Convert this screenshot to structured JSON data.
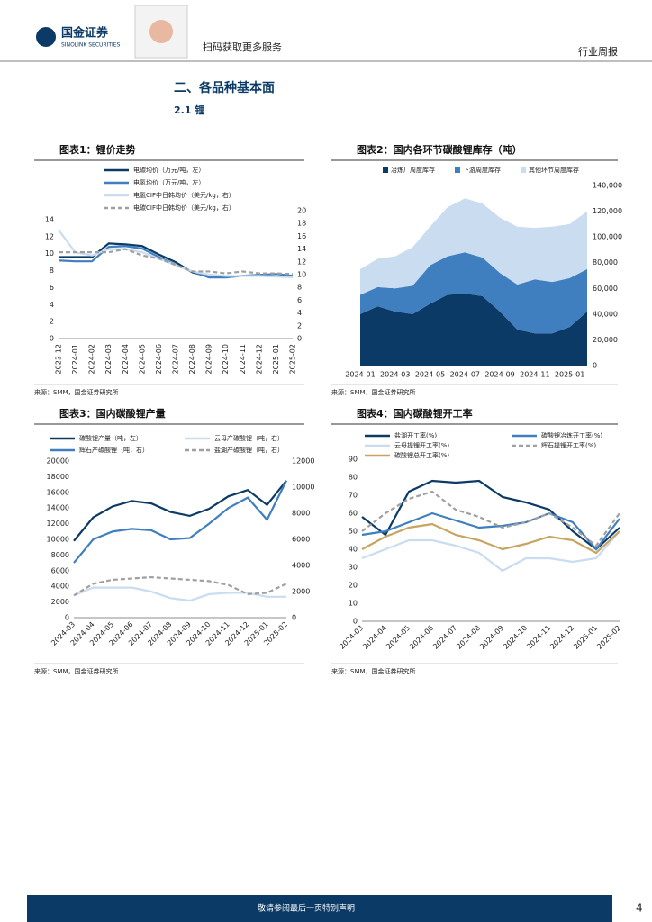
{
  "header": {
    "logo_cn": "国金证券",
    "logo_en": "SINOLINK SECURITIES",
    "qr_caption": "扫码获取更多服务",
    "report_type": "行业周报"
  },
  "section_title": "二、各品种基本面",
  "subsection_title": "2.1 锂",
  "chart_data": [
    {
      "type": "line",
      "title": "图表1：锂价走势",
      "source": "来源：SMM，国金证券研究所",
      "categories": [
        "2023-12",
        "2024-01",
        "2024-02",
        "2024-03",
        "2024-04",
        "2024-05",
        "2024-06",
        "2024-07",
        "2024-08",
        "2024-09",
        "2024-10",
        "2024-11",
        "2024-12",
        "2025-01",
        "2025-02"
      ],
      "ylim": [
        0,
        14
      ],
      "yticks": [
        0,
        2,
        4,
        6,
        8,
        10,
        12,
        14
      ],
      "y2lim": [
        0,
        20
      ],
      "y2ticks": [
        0,
        2,
        4,
        6,
        8,
        10,
        12,
        14,
        16,
        18,
        20
      ],
      "series": [
        {
          "name": "电碳均价（万元/吨，左）",
          "color": "#0b3a66",
          "values": [
            9.6,
            9.6,
            9.6,
            11.2,
            11.1,
            10.9,
            9.9,
            9.0,
            7.8,
            7.3,
            null,
            null,
            null,
            null,
            null
          ]
        },
        {
          "name": "电氢均价（万元/吨，左）",
          "color": "#3f7fc0",
          "values": [
            9.2,
            9.1,
            9.1,
            10.8,
            10.9,
            10.6,
            9.6,
            8.7,
            7.9,
            7.2,
            7.2,
            7.4,
            7.5,
            7.6,
            7.4
          ]
        },
        {
          "name": "电氢CIF中日韩均价（美元/kg，右）",
          "color": "#c9dcf0",
          "axis": "y2",
          "values": [
            17,
            13.5,
            13,
            14,
            14,
            13.5,
            12.5,
            11.5,
            10.5,
            10,
            9.8,
            9.8,
            9.8,
            9.7,
            9.6
          ]
        },
        {
          "name": "电碳CIF中日韩均价（美元/kg，右）",
          "color": "#a0a0a0",
          "dashed": true,
          "axis": "y2",
          "values": [
            13.5,
            13.5,
            13.5,
            13.5,
            14,
            13,
            12.5,
            11.5,
            10.5,
            10.5,
            10.2,
            10.5,
            10.2,
            10.2,
            10.1
          ]
        }
      ]
    },
    {
      "type": "area",
      "stacked": true,
      "title": "图表2：国内各环节碳酸锂库存（吨）",
      "source": "来源：SMM，国金证券研究所",
      "categories": [
        "2024-01",
        null,
        "2024-03",
        null,
        "2024-05",
        null,
        "2024-07",
        null,
        "2024-09",
        null,
        "2024-11",
        null,
        "2025-01",
        null
      ],
      "ylim": [
        0,
        140000
      ],
      "yticks": [
        0,
        {
          "value": 20000,
          "label": "20,000"
        },
        {
          "value": 40000,
          "label": "40,000"
        },
        {
          "value": 60000,
          "label": "60,000"
        },
        {
          "value": 80000,
          "label": "80,000"
        },
        {
          "value": 100000,
          "label": "100,000"
        },
        {
          "value": 120000,
          "label": "120,000"
        },
        {
          "value": 140000,
          "label": "140,000"
        }
      ],
      "series": [
        {
          "name": "冶炼厂周度库存",
          "color": "#0b3a66",
          "values": [
            40000,
            46000,
            42000,
            40000,
            48000,
            55000,
            56000,
            54000,
            42000,
            28000,
            25000,
            25000,
            30000,
            42000
          ]
        },
        {
          "name": "下游周度库存",
          "color": "#3f7fc0",
          "values": [
            15000,
            15000,
            18000,
            22000,
            30000,
            30000,
            32000,
            30000,
            30000,
            35000,
            42000,
            40000,
            38000,
            33000
          ]
        },
        {
          "name": "其他环节周度库存",
          "color": "#c9dcf0",
          "values": [
            20000,
            22000,
            25000,
            30000,
            30000,
            38000,
            42000,
            42000,
            43000,
            45000,
            40000,
            43000,
            42000,
            45000
          ]
        }
      ]
    },
    {
      "type": "line",
      "title": "图表3：国内碳酸锂产量",
      "source": "来源：SMM，国金证券研究所",
      "categories": [
        "2024-03",
        "2024-04",
        "2024-05",
        "2024-06",
        "2024-07",
        "2024-08",
        "2024-09",
        "2024-10",
        "2024-11",
        "2024-12",
        "2025-01",
        "2025-02"
      ],
      "ylim": [
        0,
        20000
      ],
      "yticks": [
        0,
        2000,
        4000,
        6000,
        8000,
        10000,
        12000,
        14000,
        16000,
        18000,
        20000
      ],
      "y2lim": [
        0,
        12000
      ],
      "y2ticks": [
        0,
        2000,
        4000,
        6000,
        8000,
        10000,
        12000
      ],
      "series": [
        {
          "name": "碳酸锂产量（吨，左）",
          "color": "#0b3a66",
          "values": [
            9800,
            12800,
            14200,
            14900,
            14600,
            13500,
            13000,
            13900,
            15500,
            16300,
            14400,
            17500
          ]
        },
        {
          "name": "云母产碳酸锂（吨，右）",
          "color": "#c9dcf0",
          "axis": "y2",
          "values": [
            1700,
            2300,
            2300,
            2300,
            2000,
            1500,
            1300,
            1800,
            1900,
            1900,
            1600,
            1600
          ]
        },
        {
          "name": "辉石产碳酸锂（吨，右）",
          "color": "#3f7fc0",
          "axis": "y2",
          "values": [
            4200,
            6000,
            6600,
            6800,
            6700,
            6000,
            6100,
            7200,
            8400,
            9200,
            7500,
            10500
          ]
        },
        {
          "name": "盐湖产碳酸锂（吨，右）",
          "color": "#a0a0a0",
          "dashed": true,
          "axis": "y2",
          "values": [
            1700,
            2600,
            2900,
            3000,
            3100,
            3000,
            2900,
            2800,
            2500,
            1800,
            1900,
            2600
          ]
        }
      ]
    },
    {
      "type": "line",
      "title": "图表4：国内碳酸锂开工率",
      "source": "来源：SMM，国金证券研究所",
      "categories": [
        "2024-03",
        "2024-04",
        "2024-05",
        "2024-06",
        "2024-07",
        "2024-08",
        "2024-09",
        "2024-10",
        "2024-11",
        "2024-12",
        "2025-01",
        "2025-02"
      ],
      "ylim": [
        0,
        90
      ],
      "yticks": [
        0,
        10,
        20,
        30,
        40,
        50,
        60,
        70,
        80,
        90
      ],
      "series": [
        {
          "name": "盐湖开工率(%)",
          "color": "#0b3a66",
          "values": [
            58,
            48,
            72,
            78,
            77,
            78,
            69,
            66,
            62,
            50,
            40,
            52
          ]
        },
        {
          "name": "碳酸锂冶炼开工率(%)",
          "color": "#3f7fc0",
          "values": [
            48,
            50,
            55,
            60,
            56,
            52,
            53,
            55,
            60,
            55,
            40,
            57
          ]
        },
        {
          "name": "云母提锂开工率(%)",
          "color": "#c9dcf0",
          "values": [
            35,
            40,
            45,
            45,
            42,
            38,
            28,
            35,
            35,
            33,
            35,
            50
          ]
        },
        {
          "name": "辉石提锂开工率(%)",
          "color": "#a0a0a0",
          "dashed": true,
          "values": [
            50,
            60,
            68,
            72,
            62,
            58,
            52,
            55,
            60,
            52,
            42,
            60
          ]
        },
        {
          "name": "碳酸锂总开工率(%)",
          "color": "#c8a460",
          "values": [
            40,
            47,
            52,
            54,
            48,
            45,
            40,
            43,
            47,
            45,
            38,
            50
          ]
        }
      ]
    }
  ],
  "footer": {
    "disclaimer": "敬请参阅最后一页特别声明",
    "page_number": 4
  }
}
